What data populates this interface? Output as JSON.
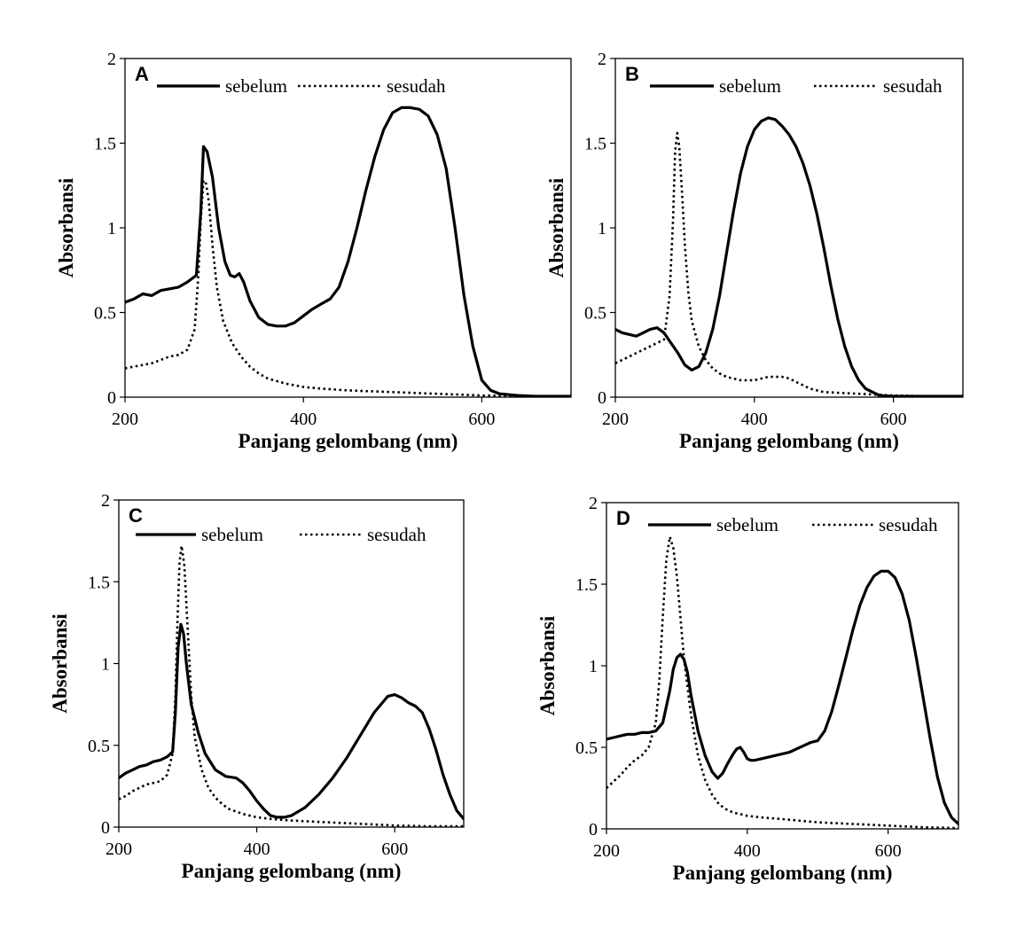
{
  "colors": {
    "line": "#000000",
    "background": "#ffffff"
  },
  "chart_data": [
    {
      "type": "line",
      "panel_label": "A",
      "xlabel": "Panjang gelombang (nm)",
      "ylabel": "Absorbansi",
      "xlim": [
        200,
        700
      ],
      "ylim": [
        0,
        2
      ],
      "xticks": [
        "200",
        "400",
        "600"
      ],
      "yticks": [
        "0",
        "0.5",
        "1",
        "1.5",
        "2"
      ],
      "legend_position": "top",
      "grid": false,
      "series": [
        {
          "name": "sebelum",
          "style": "solid",
          "x": [
            200,
            210,
            220,
            230,
            240,
            250,
            260,
            270,
            280,
            285,
            288,
            292,
            298,
            305,
            312,
            318,
            323,
            328,
            333,
            340,
            350,
            360,
            370,
            380,
            390,
            400,
            410,
            420,
            430,
            440,
            450,
            460,
            470,
            480,
            490,
            500,
            510,
            520,
            530,
            540,
            550,
            560,
            570,
            580,
            590,
            600,
            610,
            620,
            640,
            660,
            700
          ],
          "y": [
            0.56,
            0.58,
            0.61,
            0.6,
            0.63,
            0.64,
            0.65,
            0.68,
            0.72,
            1.1,
            1.48,
            1.45,
            1.3,
            1.0,
            0.8,
            0.72,
            0.71,
            0.73,
            0.68,
            0.57,
            0.47,
            0.43,
            0.42,
            0.42,
            0.44,
            0.48,
            0.52,
            0.55,
            0.58,
            0.65,
            0.8,
            1.0,
            1.22,
            1.42,
            1.58,
            1.68,
            1.71,
            1.71,
            1.7,
            1.66,
            1.55,
            1.35,
            1.0,
            0.6,
            0.3,
            0.1,
            0.04,
            0.02,
            0.01,
            0.005,
            0.005
          ]
        },
        {
          "name": "sesudah",
          "style": "dotted",
          "x": [
            200,
            210,
            220,
            230,
            240,
            250,
            260,
            270,
            278,
            282,
            285,
            288,
            291,
            294,
            298,
            303,
            310,
            320,
            330,
            340,
            350,
            360,
            380,
            400,
            420,
            450,
            500,
            550,
            600,
            650,
            700
          ],
          "y": [
            0.17,
            0.18,
            0.19,
            0.2,
            0.22,
            0.24,
            0.25,
            0.28,
            0.4,
            0.7,
            1.05,
            1.28,
            1.26,
            1.15,
            0.9,
            0.65,
            0.45,
            0.32,
            0.24,
            0.18,
            0.14,
            0.11,
            0.08,
            0.06,
            0.05,
            0.04,
            0.03,
            0.02,
            0.01,
            0.005,
            0.005
          ]
        }
      ]
    },
    {
      "type": "line",
      "panel_label": "B",
      "xlabel": "Panjang gelombang (nm)",
      "ylabel": "Absorbansi",
      "xlim": [
        200,
        700
      ],
      "ylim": [
        0,
        2
      ],
      "xticks": [
        "200",
        "400",
        "600"
      ],
      "yticks": [
        "0",
        "0.5",
        "1",
        "1.5",
        "2"
      ],
      "legend_position": "top",
      "grid": false,
      "series": [
        {
          "name": "sebelum",
          "style": "solid",
          "x": [
            200,
            210,
            220,
            230,
            240,
            250,
            260,
            270,
            280,
            290,
            300,
            310,
            320,
            330,
            340,
            350,
            360,
            370,
            380,
            390,
            400,
            410,
            420,
            430,
            440,
            450,
            460,
            470,
            480,
            490,
            500,
            510,
            520,
            530,
            540,
            550,
            560,
            570,
            580,
            600,
            650,
            700
          ],
          "y": [
            0.4,
            0.38,
            0.37,
            0.36,
            0.38,
            0.4,
            0.41,
            0.38,
            0.32,
            0.26,
            0.19,
            0.16,
            0.18,
            0.26,
            0.4,
            0.6,
            0.85,
            1.1,
            1.32,
            1.48,
            1.58,
            1.63,
            1.65,
            1.64,
            1.6,
            1.55,
            1.48,
            1.38,
            1.25,
            1.08,
            0.88,
            0.66,
            0.46,
            0.3,
            0.18,
            0.1,
            0.05,
            0.03,
            0.01,
            0.005,
            0.005,
            0.005
          ]
        },
        {
          "name": "sesudah",
          "style": "dotted",
          "x": [
            200,
            210,
            220,
            230,
            240,
            250,
            260,
            270,
            278,
            283,
            286,
            289,
            292,
            296,
            300,
            305,
            310,
            320,
            330,
            340,
            350,
            360,
            370,
            380,
            390,
            400,
            410,
            420,
            430,
            440,
            450,
            460,
            470,
            480,
            500,
            550,
            600,
            650,
            700
          ],
          "y": [
            0.2,
            0.22,
            0.24,
            0.26,
            0.28,
            0.3,
            0.32,
            0.34,
            0.6,
            1.05,
            1.45,
            1.56,
            1.48,
            1.2,
            0.9,
            0.62,
            0.45,
            0.3,
            0.22,
            0.17,
            0.14,
            0.12,
            0.11,
            0.1,
            0.1,
            0.1,
            0.11,
            0.12,
            0.12,
            0.12,
            0.11,
            0.09,
            0.07,
            0.05,
            0.03,
            0.02,
            0.01,
            0.005,
            0.005
          ]
        }
      ]
    },
    {
      "type": "line",
      "panel_label": "C",
      "xlabel": "Panjang gelombang (nm)",
      "ylabel": "Absorbansi",
      "xlim": [
        200,
        700
      ],
      "ylim": [
        0,
        2
      ],
      "xticks": [
        "200",
        "400",
        "600"
      ],
      "yticks": [
        "0",
        "0.5",
        "1",
        "1.5",
        "2"
      ],
      "legend_position": "top",
      "grid": false,
      "series": [
        {
          "name": "sebelum",
          "style": "solid",
          "x": [
            200,
            210,
            220,
            230,
            240,
            250,
            260,
            270,
            278,
            282,
            286,
            290,
            294,
            298,
            305,
            315,
            325,
            340,
            355,
            370,
            380,
            390,
            400,
            410,
            420,
            430,
            440,
            450,
            470,
            490,
            510,
            530,
            550,
            570,
            590,
            600,
            610,
            620,
            630,
            640,
            650,
            660,
            670,
            680,
            690,
            700
          ],
          "y": [
            0.3,
            0.33,
            0.35,
            0.37,
            0.38,
            0.4,
            0.41,
            0.43,
            0.46,
            0.7,
            1.1,
            1.24,
            1.18,
            1.0,
            0.75,
            0.58,
            0.45,
            0.35,
            0.31,
            0.3,
            0.27,
            0.22,
            0.16,
            0.11,
            0.07,
            0.06,
            0.06,
            0.07,
            0.12,
            0.2,
            0.3,
            0.42,
            0.56,
            0.7,
            0.8,
            0.81,
            0.79,
            0.76,
            0.74,
            0.7,
            0.6,
            0.47,
            0.32,
            0.2,
            0.1,
            0.05
          ]
        },
        {
          "name": "sesudah",
          "style": "dotted",
          "x": [
            200,
            210,
            220,
            230,
            240,
            250,
            260,
            270,
            278,
            282,
            285,
            288,
            291,
            295,
            300,
            305,
            310,
            320,
            330,
            340,
            350,
            360,
            380,
            400,
            420,
            450,
            500,
            550,
            600,
            650,
            700
          ],
          "y": [
            0.17,
            0.19,
            0.22,
            0.24,
            0.26,
            0.27,
            0.28,
            0.32,
            0.45,
            0.8,
            1.25,
            1.62,
            1.72,
            1.6,
            1.2,
            0.8,
            0.55,
            0.35,
            0.24,
            0.18,
            0.14,
            0.11,
            0.08,
            0.06,
            0.05,
            0.04,
            0.03,
            0.02,
            0.01,
            0.005,
            0.005
          ]
        }
      ]
    },
    {
      "type": "line",
      "panel_label": "D",
      "xlabel": "Panjang gelombang (nm)",
      "ylabel": "Absorbansi",
      "xlim": [
        200,
        700
      ],
      "ylim": [
        0,
        2
      ],
      "xticks": [
        "200",
        "400",
        "600"
      ],
      "yticks": [
        "0",
        "0.5",
        "1",
        "1.5",
        "2"
      ],
      "legend_position": "top",
      "grid": false,
      "series": [
        {
          "name": "sebelum",
          "style": "solid",
          "x": [
            200,
            210,
            220,
            230,
            240,
            250,
            260,
            270,
            280,
            290,
            295,
            300,
            305,
            310,
            315,
            320,
            330,
            340,
            350,
            358,
            365,
            372,
            380,
            385,
            390,
            395,
            400,
            405,
            410,
            420,
            440,
            460,
            470,
            480,
            490,
            500,
            510,
            520,
            530,
            540,
            550,
            560,
            570,
            580,
            590,
            600,
            610,
            620,
            630,
            640,
            650,
            660,
            670,
            680,
            690,
            700
          ],
          "y": [
            0.55,
            0.56,
            0.57,
            0.58,
            0.58,
            0.59,
            0.59,
            0.6,
            0.65,
            0.85,
            0.98,
            1.05,
            1.07,
            1.04,
            0.96,
            0.82,
            0.6,
            0.45,
            0.35,
            0.31,
            0.34,
            0.4,
            0.46,
            0.49,
            0.5,
            0.47,
            0.43,
            0.42,
            0.42,
            0.43,
            0.45,
            0.47,
            0.49,
            0.51,
            0.53,
            0.54,
            0.6,
            0.72,
            0.88,
            1.05,
            1.22,
            1.37,
            1.48,
            1.55,
            1.58,
            1.58,
            1.54,
            1.44,
            1.28,
            1.05,
            0.8,
            0.55,
            0.32,
            0.16,
            0.07,
            0.03
          ]
        },
        {
          "name": "sesudah",
          "style": "dotted",
          "x": [
            200,
            210,
            220,
            230,
            240,
            250,
            260,
            270,
            275,
            280,
            285,
            290,
            295,
            300,
            305,
            310,
            320,
            330,
            340,
            350,
            360,
            370,
            380,
            390,
            400,
            420,
            450,
            500,
            550,
            600,
            650,
            700
          ],
          "y": [
            0.25,
            0.29,
            0.33,
            0.38,
            0.42,
            0.45,
            0.5,
            0.65,
            0.9,
            1.3,
            1.65,
            1.79,
            1.72,
            1.55,
            1.3,
            1.05,
            0.7,
            0.45,
            0.3,
            0.21,
            0.15,
            0.12,
            0.1,
            0.09,
            0.08,
            0.07,
            0.06,
            0.04,
            0.03,
            0.02,
            0.01,
            0.005
          ]
        }
      ]
    }
  ]
}
